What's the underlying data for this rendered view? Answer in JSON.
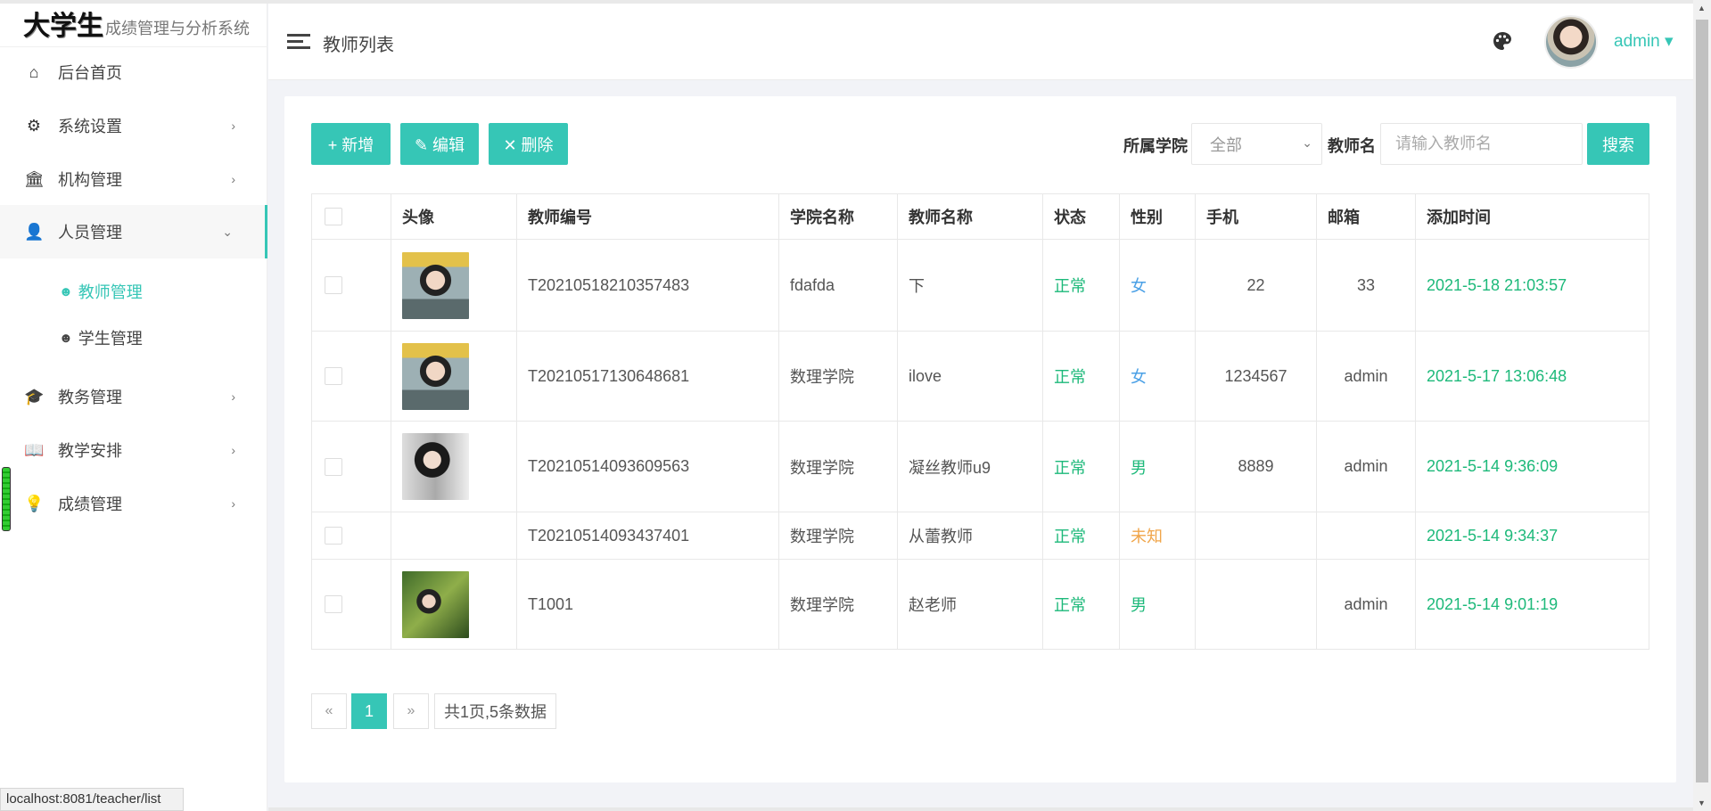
{
  "logo": {
    "big": "大学生",
    "small": "成绩管理与分析系统"
  },
  "sidebar": {
    "items": [
      {
        "label": "后台首页",
        "icon": "home-icon"
      },
      {
        "label": "系统设置",
        "icon": "gear-icon",
        "chevron": "›"
      },
      {
        "label": "机构管理",
        "icon": "bank-icon",
        "chevron": "›"
      },
      {
        "label": "人员管理",
        "icon": "user-icon",
        "chevron": "⌄"
      },
      {
        "label": "教务管理",
        "icon": "graduation-cap-icon",
        "chevron": "›"
      },
      {
        "label": "教学安排",
        "icon": "book-icon",
        "chevron": "›"
      },
      {
        "label": "成绩管理",
        "icon": "lightbulb-icon",
        "chevron": "›"
      }
    ],
    "subitems": [
      {
        "label": "教师管理",
        "active": true
      },
      {
        "label": "学生管理",
        "active": false
      }
    ]
  },
  "header": {
    "title": "教师列表",
    "user": "admin ▾"
  },
  "toolbar": {
    "add": "+ 新增",
    "edit": "✎ 编辑",
    "delete": "✕ 删除",
    "college_label": "所属学院",
    "college_value": "全部",
    "name_label": "教师名",
    "name_placeholder": "请输入教师名",
    "search": "搜索"
  },
  "table": {
    "headers": [
      "",
      "头像",
      "教师编号",
      "学院名称",
      "教师名称",
      "状态",
      "性别",
      "手机",
      "邮箱",
      "添加时间"
    ],
    "rows": [
      {
        "id": "T20210518210357483",
        "college": "fdafda",
        "name": "下",
        "status": "正常",
        "gender": "女",
        "phone": "22",
        "email": "33",
        "time": "2021-5-18 21:03:57",
        "photo": "a"
      },
      {
        "id": "T20210517130648681",
        "college": "数理学院",
        "name": "ilove",
        "status": "正常",
        "gender": "女",
        "phone": "1234567",
        "email": "admin",
        "time": "2021-5-17 13:06:48",
        "photo": "a"
      },
      {
        "id": "T20210514093609563",
        "college": "数理学院",
        "name": "凝丝教师u9",
        "status": "正常",
        "gender": "男",
        "phone": "8889",
        "email": "admin",
        "time": "2021-5-14 9:36:09",
        "photo": "b"
      },
      {
        "id": "T20210514093437401",
        "college": "数理学院",
        "name": "从蕾教师",
        "status": "正常",
        "gender": "未知",
        "phone": "",
        "email": "",
        "time": "2021-5-14 9:34:37",
        "photo": ""
      },
      {
        "id": "T1001",
        "college": "数理学院",
        "name": "赵老师",
        "status": "正常",
        "gender": "男",
        "phone": "",
        "email": "admin",
        "time": "2021-5-14 9:01:19",
        "photo": "c"
      }
    ]
  },
  "pagination": {
    "prev": "«",
    "current": "1",
    "next": "»",
    "info": "共1页,5条数据"
  },
  "statusbar": {
    "url": "localhost:8081/teacher/list"
  },
  "colors": {
    "accent": "#36c6b6",
    "green": "#1db97a",
    "female": "#4aa0e6",
    "unknown": "#f0a54a"
  }
}
